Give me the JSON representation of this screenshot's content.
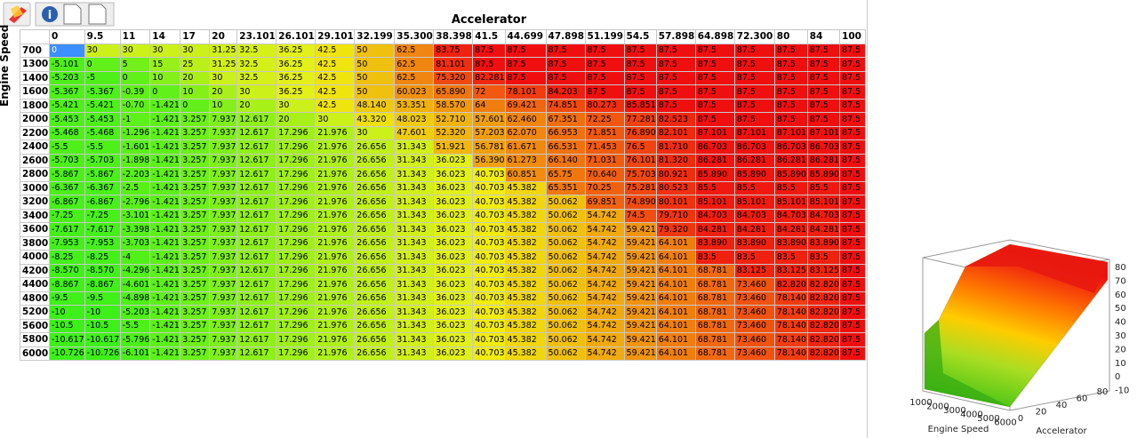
{
  "table": {
    "title": "Accelerator",
    "row_axis": "Engine Speed",
    "columns": [
      "0",
      "9.5",
      "11",
      "14",
      "17",
      "20",
      "23.101",
      "26.101",
      "29.101",
      "32.199",
      "35.300",
      "38.398",
      "41.5",
      "44.699",
      "47.898",
      "51.199",
      "54.5",
      "57.898",
      "64.898",
      "72.300",
      "80",
      "84",
      "100"
    ],
    "rows": [
      {
        "label": "700",
        "cells": [
          "0",
          "30",
          "30",
          "30",
          "30",
          "31.25",
          "32.5",
          "36.25",
          "42.5",
          "50",
          "62.5",
          "83.75",
          "87.5",
          "87.5",
          "87.5",
          "87.5",
          "87.5",
          "87.5",
          "87.5",
          "87.5",
          "87.5",
          "87.5",
          "87.5"
        ]
      },
      {
        "label": "1300",
        "cells": [
          "-5.101",
          "0",
          "5",
          "15",
          "25",
          "31.25",
          "32.5",
          "36.25",
          "42.5",
          "50",
          "62.5",
          "81.101",
          "87.5",
          "87.5",
          "87.5",
          "87.5",
          "87.5",
          "87.5",
          "87.5",
          "87.5",
          "87.5",
          "87.5",
          "87.5"
        ]
      },
      {
        "label": "1400",
        "cells": [
          "-5.203",
          "-5",
          "0",
          "10",
          "20",
          "30",
          "32.5",
          "36.25",
          "42.5",
          "50",
          "62.5",
          "75.320",
          "82.281",
          "87.5",
          "87.5",
          "87.5",
          "87.5",
          "87.5",
          "87.5",
          "87.5",
          "87.5",
          "87.5",
          "87.5"
        ]
      },
      {
        "label": "1600",
        "cells": [
          "-5.367",
          "-5.367",
          "-0.39",
          "0",
          "10",
          "20",
          "30",
          "36.25",
          "42.5",
          "50",
          "60.023",
          "65.890",
          "72",
          "78.101",
          "84.203",
          "87.5",
          "87.5",
          "87.5",
          "87.5",
          "87.5",
          "87.5",
          "87.5",
          "87.5"
        ]
      },
      {
        "label": "1800",
        "cells": [
          "-5.421",
          "-5.421",
          "-0.70",
          "-1.421",
          "0",
          "10",
          "20",
          "30",
          "42.5",
          "48.140",
          "53.351",
          "58.570",
          "64",
          "69.421",
          "74.851",
          "80.273",
          "85.851",
          "87.5",
          "87.5",
          "87.5",
          "87.5",
          "87.5",
          "87.5"
        ]
      },
      {
        "label": "2000",
        "cells": [
          "-5.453",
          "-5.453",
          "-1",
          "-1.421",
          "3.257",
          "7.937",
          "12.617",
          "20",
          "30",
          "43.320",
          "48.023",
          "52.710",
          "57.601",
          "62.460",
          "67.351",
          "72.25",
          "77.281",
          "82.523",
          "87.5",
          "87.5",
          "87.5",
          "87.5",
          "87.5"
        ]
      },
      {
        "label": "2200",
        "cells": [
          "-5.468",
          "-5.468",
          "-1.296",
          "-1.421",
          "3.257",
          "7.937",
          "12.617",
          "17.296",
          "21.976",
          "30",
          "47.601",
          "52.320",
          "57.203",
          "62.070",
          "66.953",
          "71.851",
          "76.890",
          "82.101",
          "87.101",
          "87.101",
          "87.101",
          "87.101",
          "87.5"
        ]
      },
      {
        "label": "2400",
        "cells": [
          "-5.5",
          "-5.5",
          "-1.601",
          "-1.421",
          "3.257",
          "7.937",
          "12.617",
          "17.296",
          "21.976",
          "26.656",
          "31.343",
          "51.921",
          "56.781",
          "61.671",
          "66.531",
          "71.453",
          "76.5",
          "81.710",
          "86.703",
          "86.703",
          "86.703",
          "86.703",
          "87.5"
        ]
      },
      {
        "label": "2600",
        "cells": [
          "-5.703",
          "-5.703",
          "-1.898",
          "-1.421",
          "3.257",
          "7.937",
          "12.617",
          "17.296",
          "21.976",
          "26.656",
          "31.343",
          "36.023",
          "56.390",
          "61.273",
          "66.140",
          "71.031",
          "76.101",
          "81.320",
          "86.281",
          "86.281",
          "86.281",
          "86.281",
          "87.5"
        ]
      },
      {
        "label": "2800",
        "cells": [
          "-5.867",
          "-5.867",
          "-2.203",
          "-1.421",
          "3.257",
          "7.937",
          "12.617",
          "17.296",
          "21.976",
          "26.656",
          "31.343",
          "36.023",
          "40.703",
          "60.851",
          "65.75",
          "70.640",
          "75.703",
          "80.921",
          "85.890",
          "85.890",
          "85.890",
          "85.890",
          "87.5"
        ]
      },
      {
        "label": "3000",
        "cells": [
          "-6.367",
          "-6.367",
          "-2.5",
          "-1.421",
          "3.257",
          "7.937",
          "12.617",
          "17.296",
          "21.976",
          "26.656",
          "31.343",
          "36.023",
          "40.703",
          "45.382",
          "65.351",
          "70.25",
          "75.281",
          "80.523",
          "85.5",
          "85.5",
          "85.5",
          "85.5",
          "87.5"
        ]
      },
      {
        "label": "3200",
        "cells": [
          "-6.867",
          "-6.867",
          "-2.796",
          "-1.421",
          "3.257",
          "7.937",
          "12.617",
          "17.296",
          "21.976",
          "26.656",
          "31.343",
          "36.023",
          "40.703",
          "45.382",
          "50.062",
          "69.851",
          "74.890",
          "80.101",
          "85.101",
          "85.101",
          "85.101",
          "85.101",
          "87.5"
        ]
      },
      {
        "label": "3400",
        "cells": [
          "-7.25",
          "-7.25",
          "-3.101",
          "-1.421",
          "3.257",
          "7.937",
          "12.617",
          "17.296",
          "21.976",
          "26.656",
          "31.343",
          "36.023",
          "40.703",
          "45.382",
          "50.062",
          "54.742",
          "74.5",
          "79.710",
          "84.703",
          "84.703",
          "84.703",
          "84.703",
          "87.5"
        ]
      },
      {
        "label": "3600",
        "cells": [
          "-7.617",
          "-7.617",
          "-3.398",
          "-1.421",
          "3.257",
          "7.937",
          "12.617",
          "17.296",
          "21.976",
          "26.656",
          "31.343",
          "36.023",
          "40.703",
          "45.382",
          "50.062",
          "54.742",
          "59.421",
          "79.320",
          "84.281",
          "84.281",
          "84.281",
          "84.281",
          "87.5"
        ]
      },
      {
        "label": "3800",
        "cells": [
          "-7.953",
          "-7.953",
          "-3.703",
          "-1.421",
          "3.257",
          "7.937",
          "12.617",
          "17.296",
          "21.976",
          "26.656",
          "31.343",
          "36.023",
          "40.703",
          "45.382",
          "50.062",
          "54.742",
          "59.421",
          "64.101",
          "83.890",
          "83.890",
          "83.890",
          "83.890",
          "87.5"
        ]
      },
      {
        "label": "4000",
        "cells": [
          "-8.25",
          "-8.25",
          "-4",
          "-1.421",
          "3.257",
          "7.937",
          "12.617",
          "17.296",
          "21.976",
          "26.656",
          "31.343",
          "36.023",
          "40.703",
          "45.382",
          "50.062",
          "54.742",
          "59.421",
          "64.101",
          "83.5",
          "83.5",
          "83.5",
          "83.5",
          "87.5"
        ]
      },
      {
        "label": "4200",
        "cells": [
          "-8.570",
          "-8.570",
          "-4.296",
          "-1.421",
          "3.257",
          "7.937",
          "12.617",
          "17.296",
          "21.976",
          "26.656",
          "31.343",
          "36.023",
          "40.703",
          "45.382",
          "50.062",
          "54.742",
          "59.421",
          "64.101",
          "68.781",
          "83.125",
          "83.125",
          "83.125",
          "87.5"
        ]
      },
      {
        "label": "4400",
        "cells": [
          "-8.867",
          "-8.867",
          "-4.601",
          "-1.421",
          "3.257",
          "7.937",
          "12.617",
          "17.296",
          "21.976",
          "26.656",
          "31.343",
          "36.023",
          "40.703",
          "45.382",
          "50.062",
          "54.742",
          "59.421",
          "64.101",
          "68.781",
          "73.460",
          "82.820",
          "82.820",
          "87.5"
        ]
      },
      {
        "label": "4800",
        "cells": [
          "-9.5",
          "-9.5",
          "-4.898",
          "-1.421",
          "3.257",
          "7.937",
          "12.617",
          "17.296",
          "21.976",
          "26.656",
          "31.343",
          "36.023",
          "40.703",
          "45.382",
          "50.062",
          "54.742",
          "59.421",
          "64.101",
          "68.781",
          "73.460",
          "78.140",
          "82.820",
          "87.5"
        ]
      },
      {
        "label": "5200",
        "cells": [
          "-10",
          "-10",
          "-5.203",
          "-1.421",
          "3.257",
          "7.937",
          "12.617",
          "17.296",
          "21.976",
          "26.656",
          "31.343",
          "36.023",
          "40.703",
          "45.382",
          "50.062",
          "54.742",
          "59.421",
          "64.101",
          "68.781",
          "73.460",
          "78.140",
          "82.820",
          "87.5"
        ]
      },
      {
        "label": "5600",
        "cells": [
          "-10.5",
          "-10.5",
          "-5.5",
          "-1.421",
          "3.257",
          "7.937",
          "12.617",
          "17.296",
          "21.976",
          "26.656",
          "31.343",
          "36.023",
          "40.703",
          "45.382",
          "50.062",
          "54.742",
          "59.421",
          "64.101",
          "68.781",
          "73.460",
          "78.140",
          "82.820",
          "87.5"
        ]
      },
      {
        "label": "5800",
        "cells": [
          "-10.617",
          "-10.617",
          "-5.796",
          "-1.421",
          "3.257",
          "7.937",
          "12.617",
          "17.296",
          "21.976",
          "26.656",
          "31.343",
          "36.023",
          "40.703",
          "45.382",
          "50.062",
          "54.742",
          "59.421",
          "64.101",
          "68.781",
          "73.460",
          "78.140",
          "82.820",
          "87.5"
        ]
      },
      {
        "label": "6000",
        "cells": [
          "-10.726",
          "-10.726",
          "-6.101",
          "-1.421",
          "3.257",
          "7.937",
          "12.617",
          "17.296",
          "21.976",
          "26.656",
          "31.343",
          "36.023",
          "40.703",
          "45.382",
          "50.062",
          "54.742",
          "59.421",
          "64.101",
          "68.781",
          "73.460",
          "78.140",
          "82.820",
          "87.5"
        ]
      }
    ]
  },
  "surface_plot": {
    "x_label": "Engine Speed",
    "y_label": "Accelerator",
    "x_ticks": [
      "1000",
      "2000",
      "3000",
      "4000",
      "5000",
      "6000"
    ],
    "y_ticks": [
      "0",
      "20",
      "40",
      "60",
      "80"
    ],
    "z_ticks": [
      "80",
      "70",
      "60",
      "50",
      "40",
      "30",
      "20",
      "10",
      "0",
      "-10"
    ]
  }
}
